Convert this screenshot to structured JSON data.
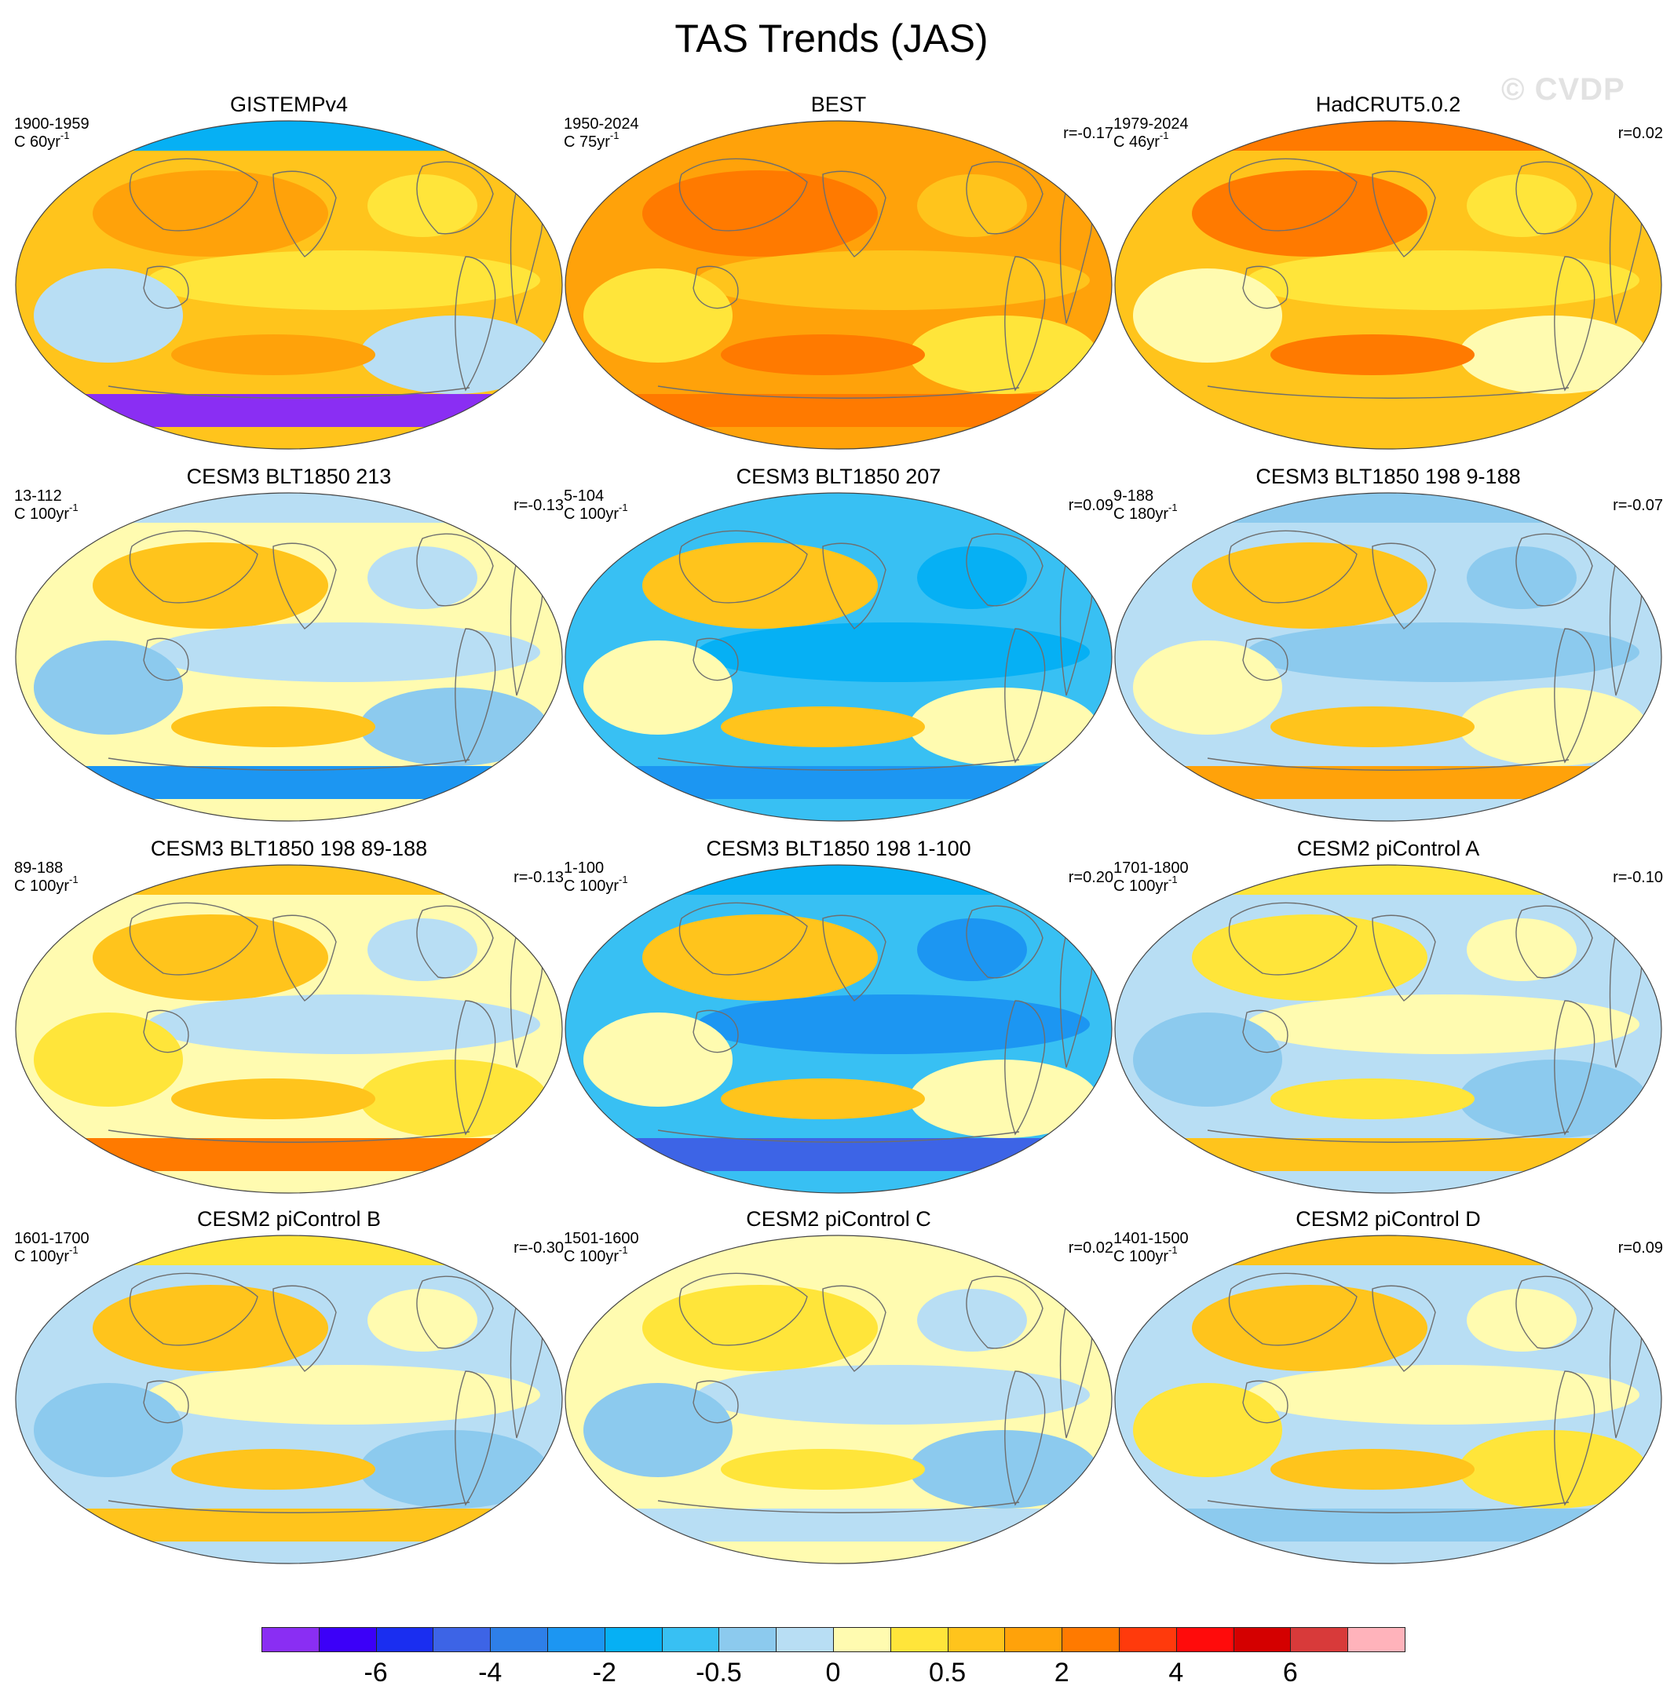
{
  "figure": {
    "title": "TAS Trends (JAS)",
    "watermark": "© CVDP"
  },
  "colorbar": {
    "colors": [
      "#8a2ef3",
      "#3c00f8",
      "#1a2ef0",
      "#3d64e6",
      "#2e7fe8",
      "#1c96f2",
      "#06b0f4",
      "#38c0f3",
      "#8ccaee",
      "#b8def4",
      "#fffbb0",
      "#ffe53a",
      "#ffc41c",
      "#ffa20a",
      "#ff7a00",
      "#ff3a0c",
      "#ff0b0b",
      "#d40000",
      "#d83a3a",
      "#ffb3bb"
    ],
    "labels": [
      "-6",
      "-4",
      "-2",
      "-0.5",
      "0",
      "0.5",
      "2",
      "4",
      "6"
    ],
    "label_boundary_index": [
      2,
      4,
      6,
      8,
      10,
      12,
      14,
      16,
      18
    ]
  },
  "chart_data": [
    {
      "type": "heatmap",
      "title": "GISTEMPv4",
      "period": "1900-1959",
      "units_prefix": "C 60yr",
      "units_exp": "-1",
      "corr": "",
      "colors": {
        "base": "#ffc41c",
        "patch1": "#ffe53a",
        "patch2": "#b8def4",
        "patch3": "#ffa20a",
        "south": "#8a2ef3",
        "north": "#06b0f4"
      }
    },
    {
      "type": "heatmap",
      "title": "BEST",
      "period": "1950-2024",
      "units_prefix": "C 75yr",
      "units_exp": "-1",
      "corr": "r=-0.17",
      "colors": {
        "base": "#ffa20a",
        "patch1": "#ffc41c",
        "patch2": "#ffe53a",
        "patch3": "#ff7a00",
        "south": "#ff7a00",
        "north": "#ffa20a"
      }
    },
    {
      "type": "heatmap",
      "title": "HadCRUT5.0.2",
      "period": "1979-2024",
      "units_prefix": "C 46yr",
      "units_exp": "-1",
      "corr": "r=0.02",
      "colors": {
        "base": "#ffc41c",
        "patch1": "#ffe53a",
        "patch2": "#fffbb0",
        "patch3": "#ff7a00",
        "south": "#ffc41c",
        "north": "#ff7a00"
      }
    },
    {
      "type": "heatmap",
      "title": "CESM3 BLT1850 213",
      "period": "13-112",
      "units_prefix": "C 100yr",
      "units_exp": "-1",
      "corr": "r=-0.13",
      "colors": {
        "base": "#fffbb0",
        "patch1": "#b8def4",
        "patch2": "#8ccaee",
        "patch3": "#ffc41c",
        "south": "#1c96f2",
        "north": "#b8def4"
      }
    },
    {
      "type": "heatmap",
      "title": "CESM3 BLT1850 207",
      "period": "5-104",
      "units_prefix": "C 100yr",
      "units_exp": "-1",
      "corr": "r=0.09",
      "colors": {
        "base": "#38c0f3",
        "patch1": "#06b0f4",
        "patch2": "#fffbb0",
        "patch3": "#ffc41c",
        "south": "#1c96f2",
        "north": "#38c0f3"
      }
    },
    {
      "type": "heatmap",
      "title": "CESM3 BLT1850 198 9-188",
      "period": "9-188",
      "units_prefix": "C 180yr",
      "units_exp": "-1",
      "corr": "r=-0.07",
      "colors": {
        "base": "#b8def4",
        "patch1": "#8ccaee",
        "patch2": "#fffbb0",
        "patch3": "#ffc41c",
        "south": "#ffa20a",
        "north": "#8ccaee"
      }
    },
    {
      "type": "heatmap",
      "title": "CESM3 BLT1850 198 89-188",
      "period": "89-188",
      "units_prefix": "C 100yr",
      "units_exp": "-1",
      "corr": "r=-0.13",
      "colors": {
        "base": "#fffbb0",
        "patch1": "#b8def4",
        "patch2": "#ffe53a",
        "patch3": "#ffc41c",
        "south": "#ff7a00",
        "north": "#ffc41c"
      }
    },
    {
      "type": "heatmap",
      "title": "CESM3 BLT1850 198 1-100",
      "period": "1-100",
      "units_prefix": "C 100yr",
      "units_exp": "-1",
      "corr": "r=0.20",
      "colors": {
        "base": "#38c0f3",
        "patch1": "#1c96f2",
        "patch2": "#fffbb0",
        "patch3": "#ffc41c",
        "south": "#3d64e6",
        "north": "#06b0f4"
      }
    },
    {
      "type": "heatmap",
      "title": "CESM2 piControl A",
      "period": "1701-1800",
      "units_prefix": "C 100yr",
      "units_exp": "-1",
      "corr": "r=-0.10",
      "colors": {
        "base": "#b8def4",
        "patch1": "#fffbb0",
        "patch2": "#8ccaee",
        "patch3": "#ffe53a",
        "south": "#ffc41c",
        "north": "#ffe53a"
      }
    },
    {
      "type": "heatmap",
      "title": "CESM2 piControl B",
      "period": "1601-1700",
      "units_prefix": "C 100yr",
      "units_exp": "-1",
      "corr": "r=-0.30",
      "colors": {
        "base": "#b8def4",
        "patch1": "#fffbb0",
        "patch2": "#8ccaee",
        "patch3": "#ffc41c",
        "south": "#ffc41c",
        "north": "#ffe53a"
      }
    },
    {
      "type": "heatmap",
      "title": "CESM2 piControl C",
      "period": "1501-1600",
      "units_prefix": "C 100yr",
      "units_exp": "-1",
      "corr": "r=0.02",
      "colors": {
        "base": "#fffbb0",
        "patch1": "#b8def4",
        "patch2": "#8ccaee",
        "patch3": "#ffe53a",
        "south": "#b8def4",
        "north": "#fffbb0"
      }
    },
    {
      "type": "heatmap",
      "title": "CESM2 piControl D",
      "period": "1401-1500",
      "units_prefix": "C 100yr",
      "units_exp": "-1",
      "corr": "r=0.09",
      "colors": {
        "base": "#b8def4",
        "patch1": "#fffbb0",
        "patch2": "#ffe53a",
        "patch3": "#ffc41c",
        "south": "#8ccaee",
        "north": "#ffc41c"
      }
    }
  ]
}
